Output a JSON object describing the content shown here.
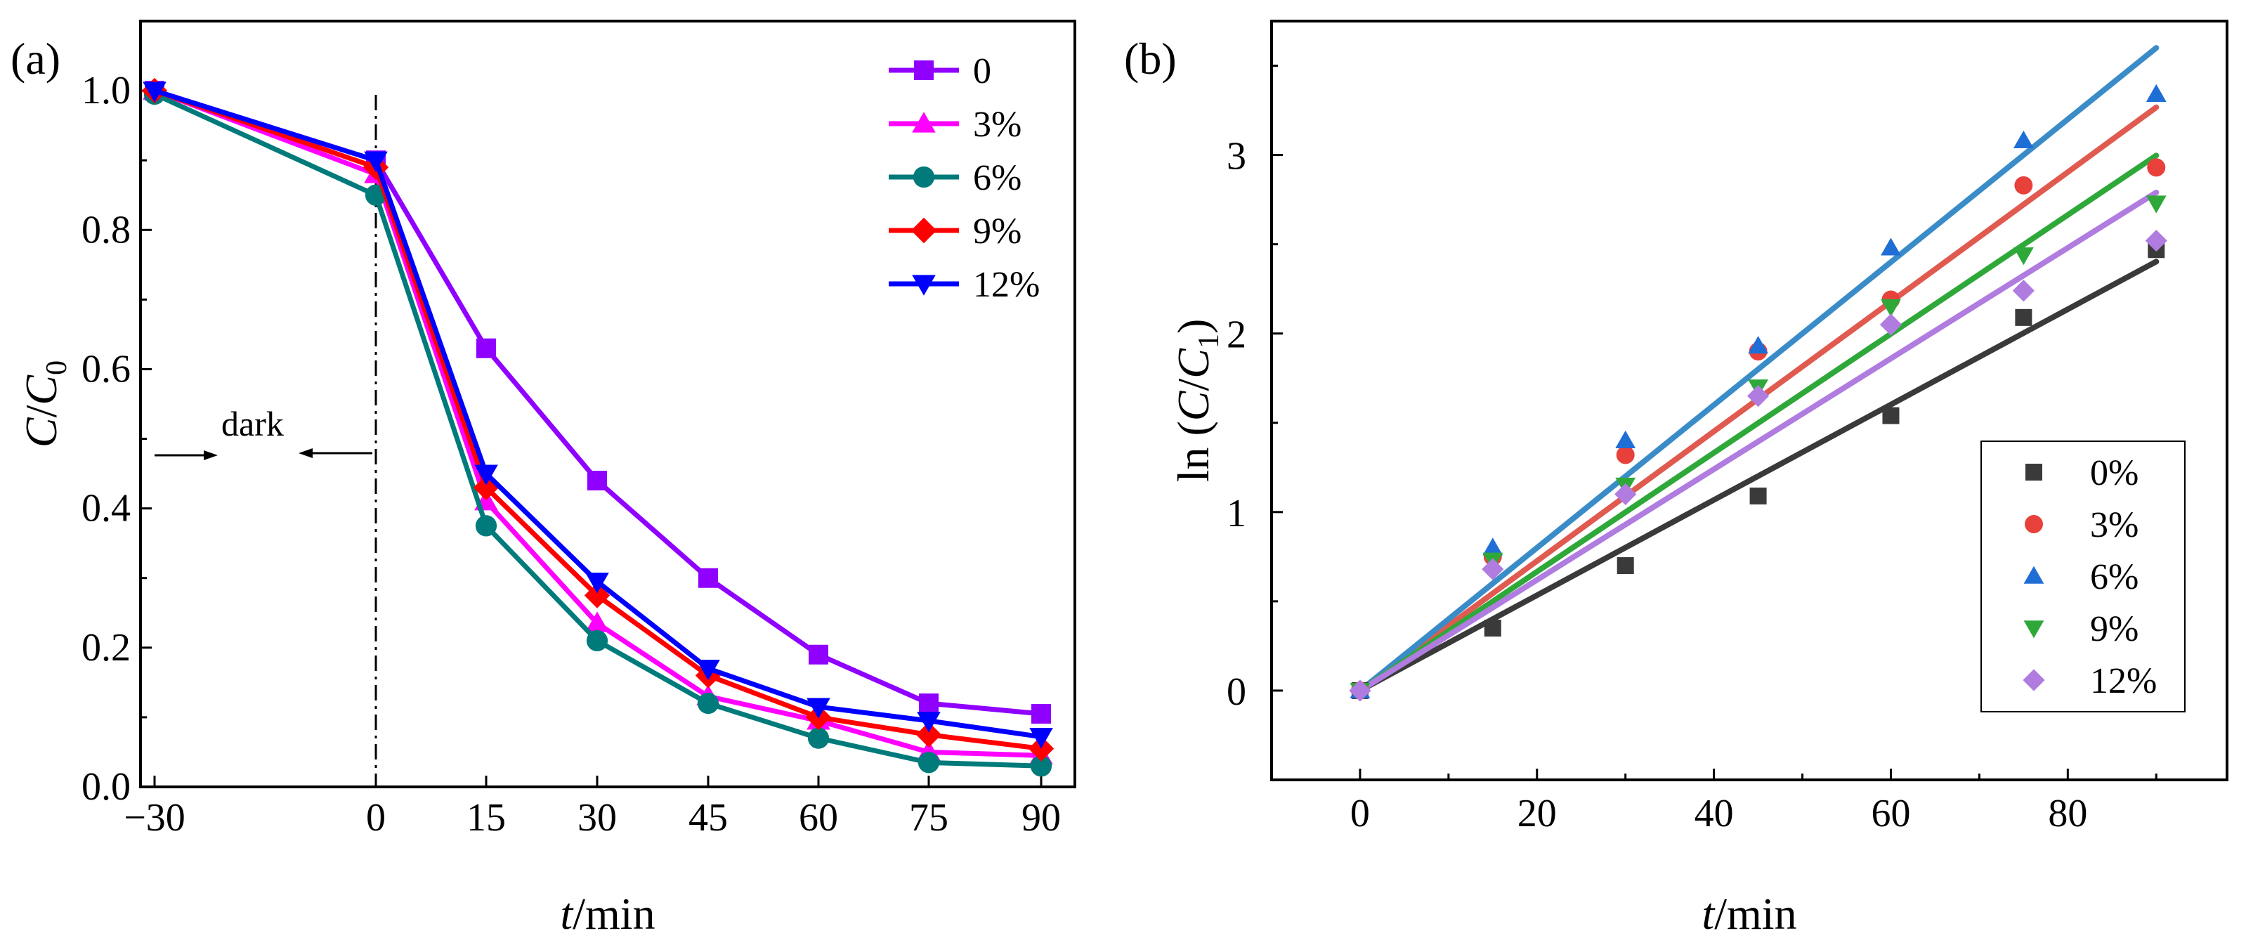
{
  "figure_labels": {
    "a": "(a)",
    "b": "(b)"
  },
  "chart_data": [
    {
      "type": "line",
      "panel": "(a)",
      "title": "",
      "xlabel_italic": "t",
      "xlabel_rest": "/min",
      "ylabel_main": "C",
      "ylabel_sep": "/",
      "ylabel_c": "C",
      "ylabel_sub": "0",
      "categories": [
        "−30",
        "0",
        "15",
        "30",
        "45",
        "60",
        "75",
        "90"
      ],
      "yticks": [
        "0.0",
        "0.2",
        "0.4",
        "0.6",
        "0.8",
        "1.0"
      ],
      "ylim": [
        0,
        1.1
      ],
      "annotation": "dark",
      "series": [
        {
          "name": "0",
          "color": "#8f00ff",
          "marker": "square",
          "values": [
            1.0,
            0.9,
            0.63,
            0.44,
            0.3,
            0.19,
            0.12,
            0.105
          ]
        },
        {
          "name": "3%",
          "color": "#ff00ff",
          "marker": "triangle-up",
          "values": [
            1.0,
            0.88,
            0.41,
            0.235,
            0.13,
            0.095,
            0.05,
            0.045
          ]
        },
        {
          "name": "6%",
          "color": "#007a7a",
          "marker": "circle",
          "values": [
            0.995,
            0.85,
            0.375,
            0.21,
            0.12,
            0.07,
            0.035,
            0.03
          ]
        },
        {
          "name": "9%",
          "color": "#ff0000",
          "marker": "diamond",
          "values": [
            1.0,
            0.89,
            0.43,
            0.275,
            0.16,
            0.1,
            0.075,
            0.055
          ]
        },
        {
          "name": "12%",
          "color": "#0000ff",
          "marker": "triangle-down",
          "values": [
            1.0,
            0.9,
            0.45,
            0.295,
            0.17,
            0.115,
            0.095,
            0.072
          ]
        }
      ]
    },
    {
      "type": "scatter",
      "panel": "(b)",
      "title": "",
      "xlabel_italic": "t",
      "xlabel_rest": "/min",
      "ylabel_prefix": "ln (",
      "ylabel_main": "C",
      "ylabel_sep": "/",
      "ylabel_c": "C",
      "ylabel_sub": "1",
      "ylabel_suffix": ")",
      "xticks": [
        "0",
        "20",
        "40",
        "60",
        "80"
      ],
      "yticks": [
        "0",
        "1",
        "2",
        "3"
      ],
      "xlim": [
        -10,
        98
      ],
      "ylim": [
        -0.5,
        3.75
      ],
      "x": [
        0,
        15,
        30,
        45,
        60,
        75,
        90
      ],
      "series": [
        {
          "name": "0%",
          "color": "#3a3a3a",
          "marker": "square",
          "values": [
            0,
            0.35,
            0.7,
            1.09,
            1.54,
            2.09,
            2.47
          ],
          "slope": 0.0267
        },
        {
          "name": "3%",
          "color": "#e8403b",
          "marker": "circle",
          "values": [
            0,
            0.75,
            1.32,
            1.9,
            2.19,
            2.83,
            2.93
          ],
          "slope": 0.0363
        },
        {
          "name": "6%",
          "color": "#1f6ed6",
          "marker": "triangle-up",
          "values": [
            0,
            0.8,
            1.4,
            1.93,
            2.48,
            3.08,
            3.34
          ],
          "slope": 0.04
        },
        {
          "name": "9%",
          "color": "#2fa83a",
          "marker": "triangle-down",
          "values": [
            0,
            0.73,
            1.15,
            1.7,
            2.15,
            2.44,
            2.73
          ],
          "slope": 0.0333
        },
        {
          "name": "12%",
          "color": "#b07ce0",
          "marker": "diamond",
          "values": [
            0,
            0.68,
            1.1,
            1.65,
            2.05,
            2.24,
            2.52
          ],
          "slope": 0.031
        }
      ],
      "fit_colors": [
        "#3a3a3a",
        "#e05a4f",
        "#3a8cc8",
        "#2fa83a",
        "#b07ce0"
      ]
    }
  ]
}
